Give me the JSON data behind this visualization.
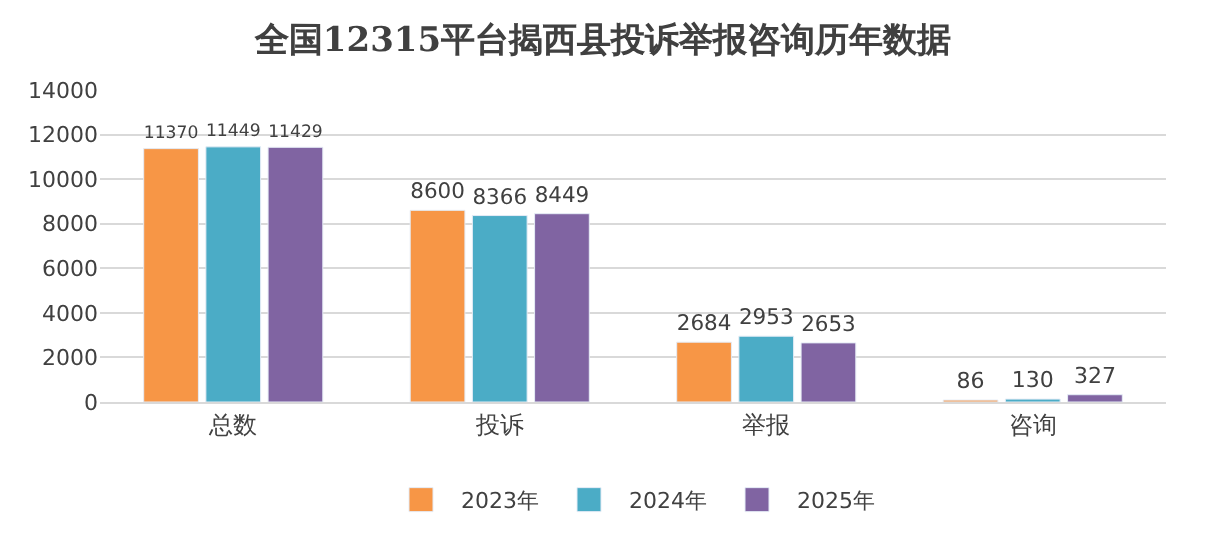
{
  "chart_data": {
    "type": "bar",
    "title": "全国12315平台揭西县投诉举报咨询历年数据",
    "categories": [
      "总数",
      "投诉",
      "举报",
      "咨询"
    ],
    "series": [
      {
        "name": "2023年",
        "color": "#f79646",
        "values": [
          11370,
          8600,
          2684,
          86
        ]
      },
      {
        "name": "2024年",
        "color": "#4bacc6",
        "values": [
          11449,
          8366,
          2953,
          130
        ]
      },
      {
        "name": "2025年",
        "color": "#8064a2",
        "values": [
          11429,
          8449,
          2653,
          327
        ]
      }
    ],
    "ylim": [
      0,
      14000
    ],
    "yticks": [
      0,
      2000,
      4000,
      6000,
      8000,
      10000,
      12000,
      14000
    ],
    "grid": "y",
    "legend": "bottom",
    "data_labels": true
  }
}
